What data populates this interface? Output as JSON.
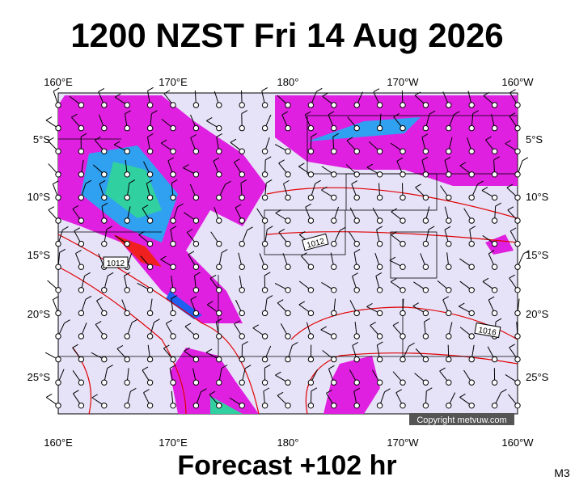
{
  "header": {
    "title": "1200 NZST Fri 14 Aug 2026"
  },
  "map": {
    "lon_labels": [
      "160°E",
      "170°E",
      "180°",
      "170°W",
      "160°W"
    ],
    "lat_labels": [
      "5°S",
      "10°S",
      "15°S",
      "20°S",
      "25°S"
    ],
    "isobar_labels": [
      "1012",
      "1012",
      "1016"
    ],
    "copyright": "Copyright metvuw.com"
  },
  "footer": {
    "forecast": "Forecast +102 hr",
    "code": "M3"
  }
}
